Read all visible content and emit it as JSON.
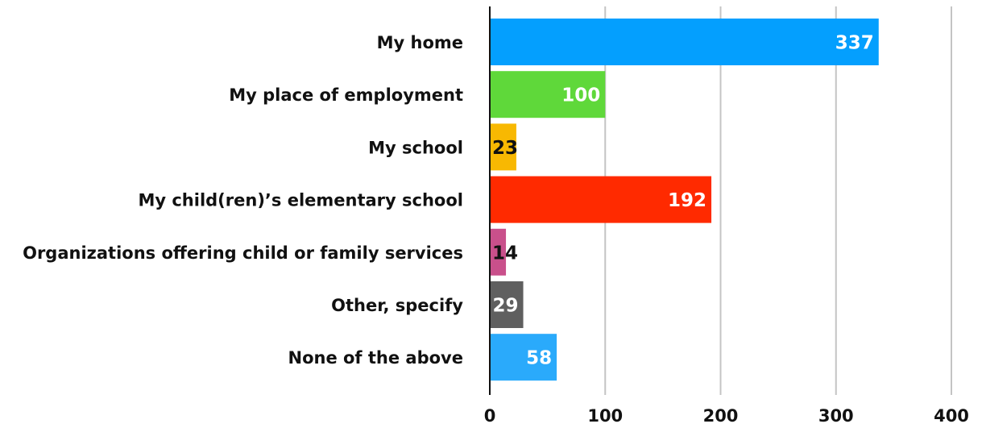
{
  "chart_data": {
    "type": "hbar",
    "categories": [
      "My home",
      "My place of employment",
      "My school",
      "My child(ren)’s elementary school",
      "Organizations offering child or family services",
      "Other, specify",
      "None of the above"
    ],
    "values": [
      337,
      100,
      23,
      192,
      14,
      29,
      58
    ],
    "colors": [
      "#049ffe",
      "#5fd83a",
      "#f8b802",
      "#ff2a00",
      "#c9508b",
      "#5f5f5f",
      "#2aaafb"
    ],
    "xlim": [
      0,
      400
    ],
    "xticks": [
      0,
      100,
      200,
      300,
      400
    ],
    "grid": true
  }
}
